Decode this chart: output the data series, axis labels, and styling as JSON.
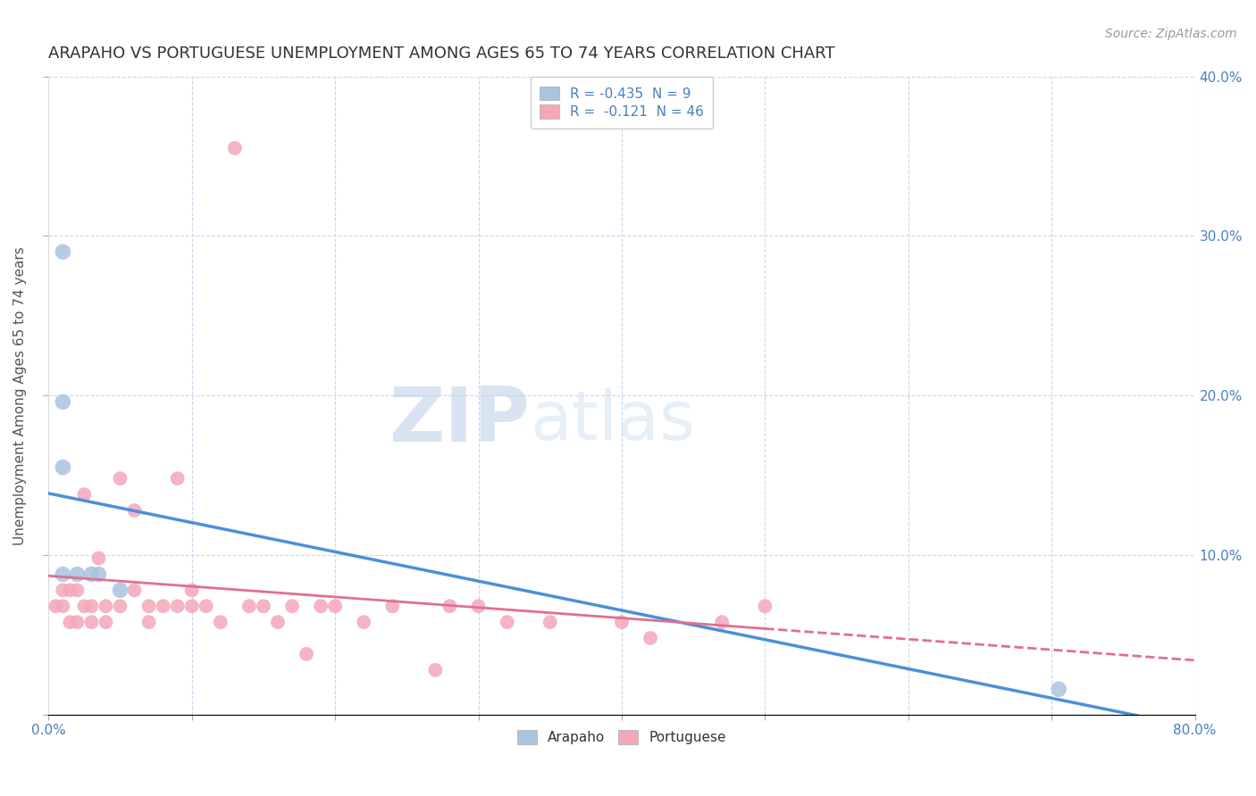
{
  "title": "ARAPAHO VS PORTUGUESE UNEMPLOYMENT AMONG AGES 65 TO 74 YEARS CORRELATION CHART",
  "source": "Source: ZipAtlas.com",
  "ylabel": "Unemployment Among Ages 65 to 74 years",
  "xlim": [
    0,
    0.8
  ],
  "ylim": [
    0,
    0.4
  ],
  "xticks": [
    0.0,
    0.1,
    0.2,
    0.3,
    0.4,
    0.5,
    0.6,
    0.7,
    0.8
  ],
  "yticks": [
    0.0,
    0.1,
    0.2,
    0.3,
    0.4
  ],
  "arapaho_color": "#a8c4e0",
  "arapaho_line_color": "#4a90d9",
  "portuguese_color": "#f4a7b9",
  "portuguese_line_color": "#e07090",
  "legend_text_color": "#4a7fc1",
  "arapaho_R": -0.435,
  "arapaho_N": 9,
  "portuguese_R": -0.121,
  "portuguese_N": 46,
  "arapaho_points_x": [
    0.01,
    0.01,
    0.01,
    0.01,
    0.02,
    0.03,
    0.035,
    0.05,
    0.705
  ],
  "arapaho_points_y": [
    0.29,
    0.196,
    0.155,
    0.088,
    0.088,
    0.088,
    0.088,
    0.078,
    0.016
  ],
  "portuguese_points_x": [
    0.005,
    0.01,
    0.01,
    0.015,
    0.015,
    0.02,
    0.02,
    0.025,
    0.025,
    0.03,
    0.03,
    0.035,
    0.04,
    0.04,
    0.05,
    0.05,
    0.06,
    0.06,
    0.07,
    0.07,
    0.08,
    0.09,
    0.09,
    0.1,
    0.1,
    0.11,
    0.12,
    0.13,
    0.14,
    0.15,
    0.16,
    0.17,
    0.18,
    0.19,
    0.2,
    0.22,
    0.24,
    0.27,
    0.28,
    0.3,
    0.32,
    0.35,
    0.4,
    0.42,
    0.47,
    0.5
  ],
  "portuguese_points_y": [
    0.068,
    0.078,
    0.068,
    0.078,
    0.058,
    0.078,
    0.058,
    0.138,
    0.068,
    0.068,
    0.058,
    0.098,
    0.068,
    0.058,
    0.148,
    0.068,
    0.128,
    0.078,
    0.068,
    0.058,
    0.068,
    0.148,
    0.068,
    0.078,
    0.068,
    0.068,
    0.058,
    0.355,
    0.068,
    0.068,
    0.058,
    0.068,
    0.038,
    0.068,
    0.068,
    0.058,
    0.068,
    0.028,
    0.068,
    0.068,
    0.058,
    0.058,
    0.058,
    0.048,
    0.058,
    0.068
  ],
  "watermark_zip": "ZIP",
  "watermark_atlas": "atlas",
  "background_color": "#ffffff",
  "grid_color": "#c8d8ea",
  "title_fontsize": 13,
  "tick_color": "#4a7fc1"
}
